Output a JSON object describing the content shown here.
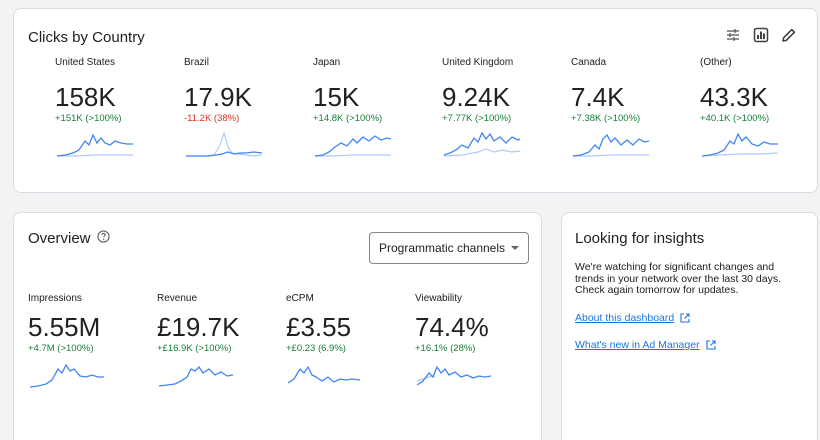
{
  "clicks": {
    "title": "Clicks by Country",
    "countries": [
      {
        "label": "United States",
        "value": "158K",
        "delta": "+151K (>100%)",
        "trend": "up"
      },
      {
        "label": "Brazil",
        "value": "17.9K",
        "delta": "-11.2K (38%)",
        "trend": "down"
      },
      {
        "label": "Japan",
        "value": "15K",
        "delta": "+14.8K (>100%)",
        "trend": "up"
      },
      {
        "label": "United Kingdom",
        "value": "9.24K",
        "delta": "+7.77K (>100%)",
        "trend": "up"
      },
      {
        "label": "Canada",
        "value": "7.4K",
        "delta": "+7.38K (>100%)",
        "trend": "up"
      },
      {
        "label": "(Other)",
        "value": "43.3K",
        "delta": "+40.1K (>100%)",
        "trend": "up"
      }
    ]
  },
  "overview": {
    "title": "Overview",
    "dropdown_label": "Programmatic channels",
    "metrics": [
      {
        "label": "Impressions",
        "value": "5.55M",
        "delta": "+4.7M (>100%)",
        "trend": "up"
      },
      {
        "label": "Revenue",
        "value": "£19.7K",
        "delta": "+£16.9K (>100%)",
        "trend": "up"
      },
      {
        "label": "eCPM",
        "value": "£3.55",
        "delta": "+£0.23 (6.9%)",
        "trend": "up"
      },
      {
        "label": "Viewability",
        "value": "74.4%",
        "delta": "+16.1% (28%)",
        "trend": "up"
      }
    ]
  },
  "insights": {
    "title": "Looking for insights",
    "body": "We're watching for significant changes and trends in your network over the last 30 days. Check again tomorrow for updates.",
    "links": [
      {
        "label": "About this dashboard"
      },
      {
        "label": "What's new in Ad Manager"
      }
    ]
  },
  "colors": {
    "spark_primary": "#4285f4",
    "spark_secondary": "#aecbfa",
    "positive": "#188038",
    "negative": "#d93025",
    "link": "#1a73e8"
  },
  "icons": [
    "filter-sliders-icon",
    "chart-toggle-icon",
    "edit-pencil-icon",
    "help-circle-icon",
    "dropdown-caret-icon",
    "external-link-icon"
  ]
}
